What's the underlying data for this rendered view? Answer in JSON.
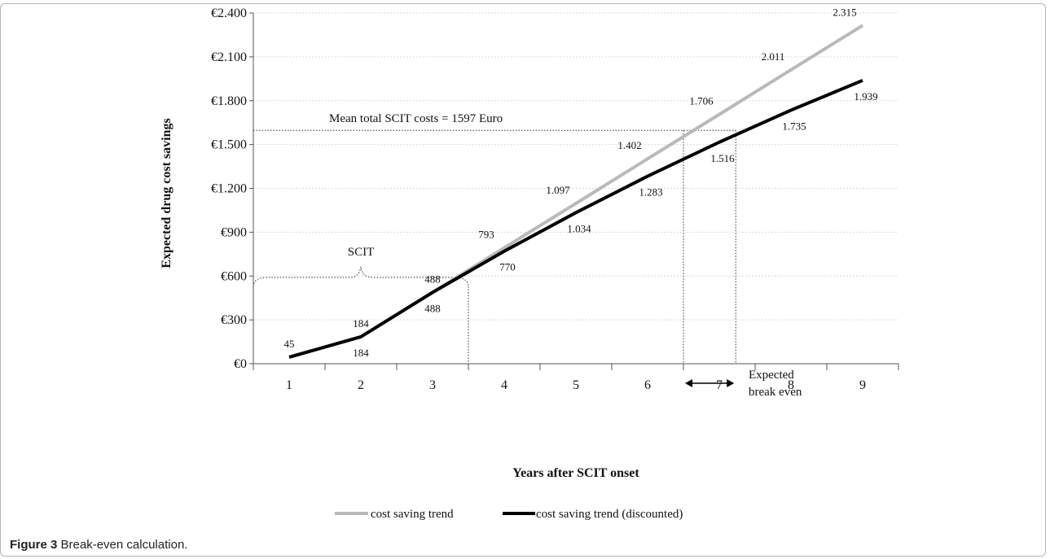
{
  "figure": {
    "caption_label": "Figure 3",
    "caption_text": "Break-even calculation."
  },
  "colors": {
    "trend": "#b9b9b9",
    "discounted": "#000000",
    "grid": "#d9d9d9"
  },
  "chart_data": {
    "type": "line",
    "xlabel": "Years after SCIT onset",
    "ylabel": "Expected drug cost savings",
    "categories": [
      "1",
      "2",
      "3",
      "4",
      "5",
      "6",
      "7",
      "8",
      "9"
    ],
    "ylim": [
      0,
      2400
    ],
    "yticks": [
      0,
      300,
      600,
      900,
      1200,
      1500,
      1800,
      2100,
      2400
    ],
    "ytick_labels": [
      "€0",
      "€300",
      "€600",
      "€900",
      "€1.200",
      "€1.500",
      "€1.800",
      "€2.100",
      "€2.400"
    ],
    "grid": "horizontal",
    "legend_position": "bottom",
    "series": [
      {
        "name": "cost saving trend",
        "values": [
          45,
          184,
          488,
          793,
          1097,
          1402,
          1706,
          2011,
          2315
        ],
        "value_labels": [
          "45",
          "184",
          "488",
          "793",
          "1.097",
          "1.402",
          "1.706",
          "2.011",
          "2.315"
        ],
        "color": "#b9b9b9"
      },
      {
        "name": "cost saving trend (discounted)",
        "values": [
          45,
          184,
          488,
          770,
          1034,
          1283,
          1516,
          1735,
          1939
        ],
        "value_labels": [
          "",
          "184",
          "488",
          "770",
          "1.034",
          "1.283",
          "1.516",
          "1.735",
          "1.939"
        ],
        "color": "#000000"
      }
    ],
    "annotations": {
      "mean_cost_label": "Mean total SCIT costs = 1597 Euro",
      "mean_cost_value": 1597,
      "scit_label": "SCIT",
      "scit_end_x": 3.5,
      "break_even_label_1": "Expected",
      "break_even_label_2": "break even",
      "break_even_start_x": 6.5,
      "break_even_end_x": 7.23
    }
  }
}
